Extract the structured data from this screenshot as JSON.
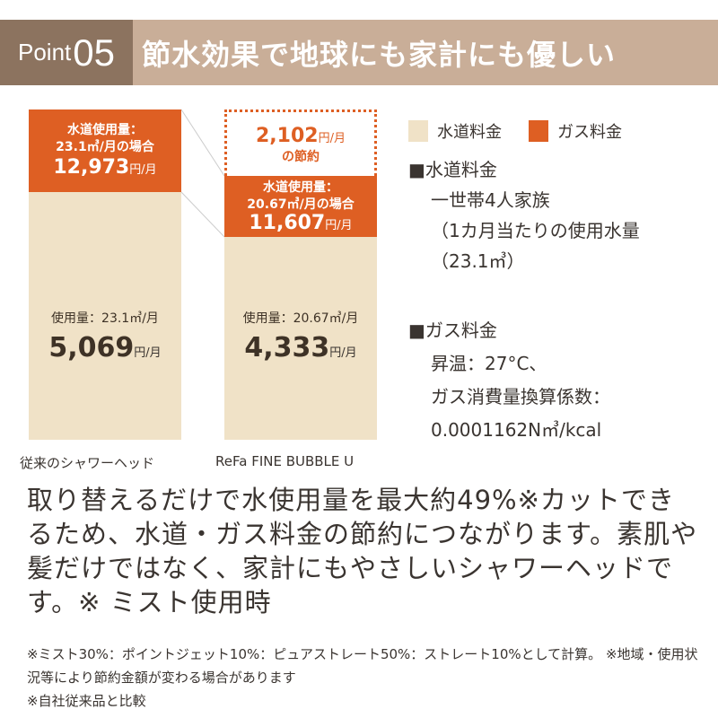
{
  "header": {
    "point_label": "Point",
    "point_number": "05",
    "title": "節水効果で地球にも家計にも優しい"
  },
  "colors": {
    "water": "#f0e2c7",
    "gas": "#de5f23",
    "header_dark": "#8c735f",
    "header_light": "#c9ae98"
  },
  "chart_data": {
    "type": "bar",
    "stacked": true,
    "categories": [
      "従来のシャワーヘッド",
      "ReFa FINE BUBBLE U"
    ],
    "series": [
      {
        "name": "水道料金",
        "values": [
          5069,
          4333
        ]
      },
      {
        "name": "ガス料金",
        "values": [
          12973,
          11607
        ]
      }
    ],
    "legend_position": "top-right"
  },
  "bars": [
    {
      "category": "従来のシャワーヘッド",
      "gas_note1": "水道使用量：",
      "gas_note2": "23.1㎥/月の場合",
      "gas_value": "12,973",
      "water_note": "使用量：23.1㎥/月",
      "water_value": "5,069",
      "unit": "円/月"
    },
    {
      "category": "ReFa FINE BUBBLE U",
      "gas_note1": "水道使用量：",
      "gas_note2": "20.67㎥/月の場合",
      "gas_value": "11,607",
      "water_note": "使用量：20.67㎥/月",
      "water_value": "4,333",
      "unit": "円/月"
    }
  ],
  "saving": {
    "value": "2,102",
    "unit": "円/月",
    "label": "の節約"
  },
  "legend": {
    "water": "水道料金",
    "gas": "ガス料金"
  },
  "notes_right": {
    "water_head": "■水道料金",
    "water_lines": [
      "一世帯4人家族",
      "（1カ月当たりの使用水量",
      "（23.1㎥）"
    ],
    "gas_head": "■ガス料金",
    "gas_lines": [
      "昇温：27°C、",
      "ガス消費量換算係数：",
      "0.0001162N㎥/kcal"
    ]
  },
  "main_text": "取り替えるだけで水使用量を最大約49%※カットできるため、水道・ガス料金の節約につながります。素肌や髪だけではなく、家計にもやさしいシャワーヘッドです。※ ミスト使用時",
  "footnotes": [
    "※ミスト30%：ポイントジェット10%：ピュアストレート50%：ストレート10%として計算。 ※地域・使用状況等により節約金額が変わる場合があります",
    "※自社従来品と比較"
  ]
}
